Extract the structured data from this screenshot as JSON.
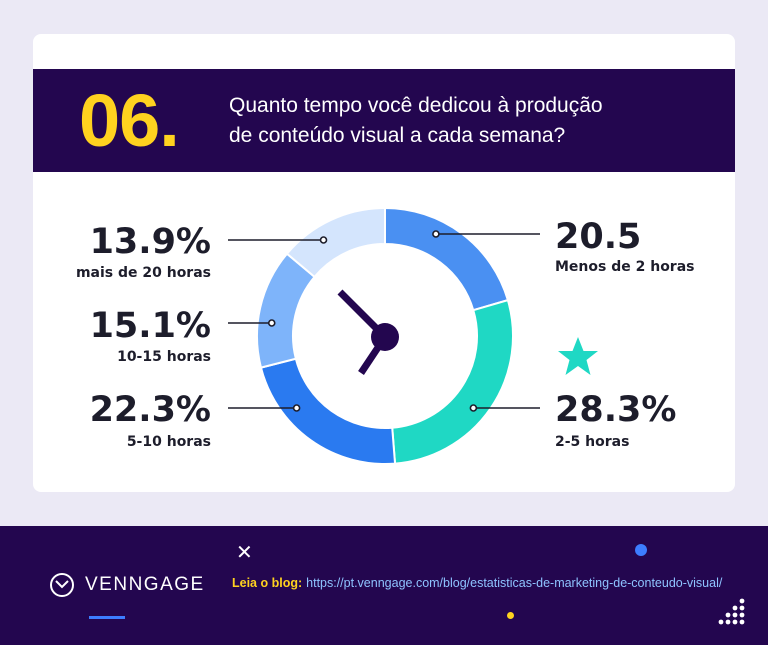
{
  "header": {
    "number": "06.",
    "question_line1": "Quanto tempo você dedicou à produção",
    "question_line2": "de conteúdo visual a cada semana?"
  },
  "chart_data": {
    "type": "pie",
    "donut": true,
    "categories": [
      "Menos de 2 horas",
      "2-5 horas",
      "5-10 horas",
      "10-15 horas",
      "mais de 20 horas"
    ],
    "values": [
      20.5,
      28.3,
      22.3,
      15.1,
      13.9
    ],
    "value_labels": [
      "20.5",
      "28.3%",
      "22.3%",
      "15.1%",
      "13.9%"
    ],
    "colors": [
      "#4a90f2",
      "#1fd8c4",
      "#2a7af0",
      "#7eb4fa",
      "#d4e5fd"
    ],
    "highlight": "2-5 horas",
    "highlight_icon": "star-icon",
    "center_icon": "clock-hands-icon"
  },
  "footer": {
    "brand": "VENNGAGE",
    "blog_label": "Leia o blog:",
    "blog_url": "https://pt.venngage.com/blog/estatisticas-de-marketing-de-conteudo-visual/"
  },
  "colors": {
    "background": "#ebe9f5",
    "header_bg": "#23064f",
    "accent_yellow": "#ffd21f",
    "text_dark": "#1d1d2b"
  }
}
